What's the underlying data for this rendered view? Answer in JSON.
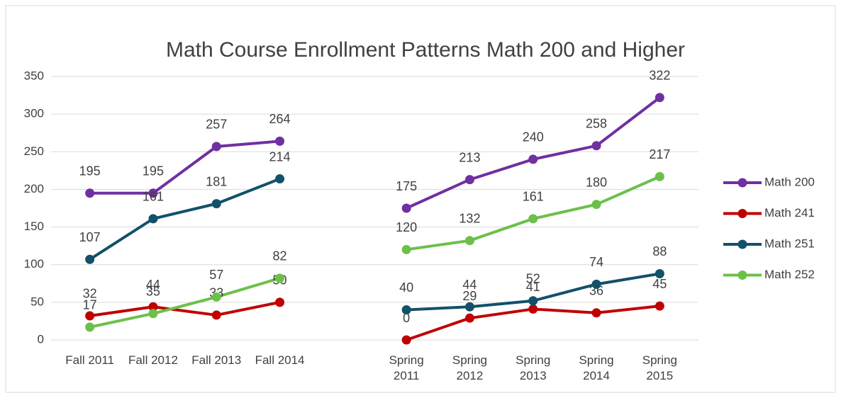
{
  "chart_data": {
    "type": "line",
    "title": "Math Course Enrollment Patterns Math 200 and Higher",
    "categories": [
      "Fall 2011",
      "Fall 2012",
      "Fall 2013",
      "Fall 2014",
      null,
      "Spring 2011",
      "Spring 2012",
      "Spring 2013",
      "Spring 2014",
      "Spring 2015"
    ],
    "series": [
      {
        "name": "Math 200",
        "color": "#7030a0",
        "values": [
          195,
          195,
          257,
          264,
          null,
          175,
          213,
          240,
          258,
          322
        ]
      },
      {
        "name": "Math 241",
        "color": "#c00000",
        "values": [
          32,
          44,
          33,
          50,
          null,
          0,
          29,
          41,
          36,
          45
        ]
      },
      {
        "name": "Math 251",
        "color": "#13506a",
        "values": [
          107,
          161,
          181,
          214,
          null,
          40,
          44,
          52,
          74,
          88
        ]
      },
      {
        "name": "Math 252",
        "color": "#6cc04a",
        "values": [
          17,
          35,
          57,
          82,
          null,
          120,
          132,
          161,
          180,
          217
        ]
      }
    ],
    "ylim": [
      0,
      350
    ],
    "yticks": [
      0,
      50,
      100,
      150,
      200,
      250,
      300,
      350
    ],
    "grid": true,
    "legend": "right"
  }
}
